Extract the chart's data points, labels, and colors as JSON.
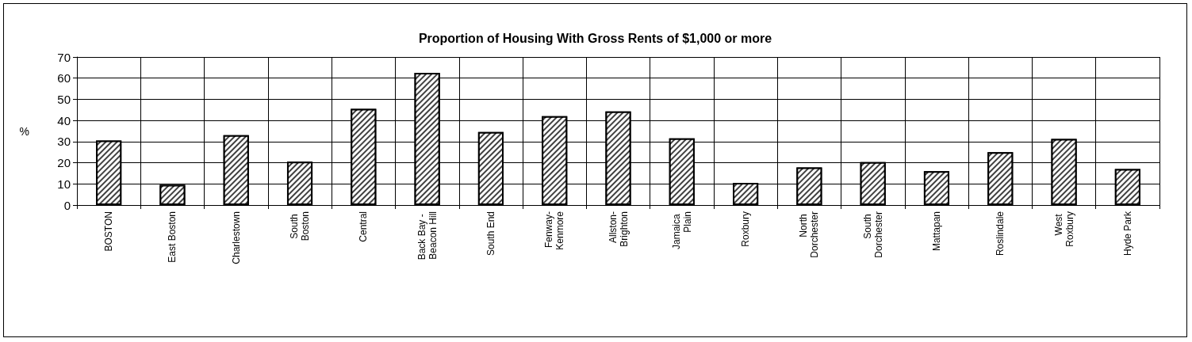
{
  "chart_data": {
    "type": "bar",
    "title": "Proportion of Housing With Gross Rents of $1,000 or more",
    "ylabel": "%",
    "categories": [
      "BOSTON",
      "East Boston",
      "Charlestown",
      "South Boston",
      "Central",
      "Back Bay - Beacon Hill",
      "South End",
      "Fenway-Kenmore",
      "Allston-Brighton",
      "Jamaica Plain",
      "Roxbury",
      "North Dorchester",
      "South Dorchester",
      "Mattapan",
      "Roslindale",
      "West Roxbury",
      "Hyde Park"
    ],
    "values": [
      30.5,
      9.5,
      33,
      20.5,
      45.5,
      62.5,
      34.5,
      42,
      44.3,
      31.5,
      10.5,
      17.8,
      20.3,
      16,
      25,
      31.3,
      17
    ],
    "color": "#404040",
    "ylim": [
      0,
      70
    ],
    "yticks": [
      0,
      10,
      20,
      30,
      40,
      50,
      60,
      70
    ],
    "grid": true
  }
}
